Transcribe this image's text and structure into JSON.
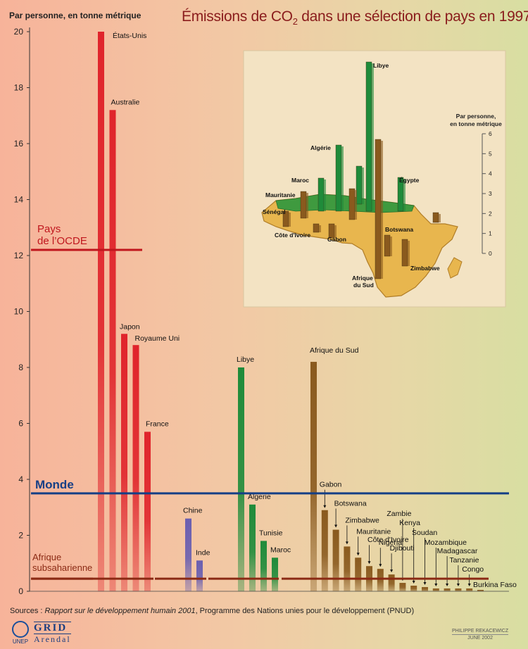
{
  "chart_data": {
    "type": "bar",
    "title_parts": {
      "before": "Émissions de CO",
      "sub": "2",
      "after": " dans une sélection de pays en 1997"
    },
    "ylabel": "Par personne, en tonne métrique",
    "ylim": [
      0,
      20
    ],
    "yticks": [
      "0",
      "2",
      "4",
      "6",
      "8",
      "10",
      "12",
      "14",
      "16",
      "18",
      "20"
    ],
    "groups": [
      {
        "color": "#e0242b",
        "bars": [
          {
            "label": "États-Unis",
            "value": 20.0
          },
          {
            "label": "Australie",
            "value": 17.2
          },
          {
            "label": "Japon",
            "value": 9.2
          },
          {
            "label": "Royaume Uni",
            "value": 8.8
          },
          {
            "label": "France",
            "value": 5.7
          }
        ]
      },
      {
        "color": "#6a5fb0",
        "bars": [
          {
            "label": "Chine",
            "value": 2.6
          },
          {
            "label": "Inde",
            "value": 1.1
          }
        ]
      },
      {
        "color": "#1f8b3a",
        "bars": [
          {
            "label": "Libye",
            "value": 8.0
          },
          {
            "label": "Algerie",
            "value": 3.1
          },
          {
            "label": "Tunisie",
            "value": 1.8
          },
          {
            "label": "Maroc",
            "value": 1.2
          }
        ]
      },
      {
        "color": "#8a5a1e",
        "bars": [
          {
            "label": "Afrique du Sud",
            "value": 8.2
          },
          {
            "label": "Gabon",
            "value": 2.9
          },
          {
            "label": "Botswana",
            "value": 2.2
          },
          {
            "label": "Zimbabwe",
            "value": 1.6
          },
          {
            "label": "Mauritanie",
            "value": 1.2
          },
          {
            "label": "Côte d'Ivoire",
            "value": 0.9
          },
          {
            "label": "Nigeria",
            "value": 0.8
          },
          {
            "label": "Djibouti",
            "value": 0.6
          },
          {
            "label": "Zambie",
            "value": 0.3
          },
          {
            "label": "Kenya",
            "value": 0.2
          },
          {
            "label": "Soudan",
            "value": 0.15
          },
          {
            "label": "Mozambique",
            "value": 0.1
          },
          {
            "label": "Madagascar",
            "value": 0.1
          },
          {
            "label": "Tanzanie",
            "value": 0.1
          },
          {
            "label": "Congo",
            "value": 0.1
          },
          {
            "label": "Burkina Faso",
            "value": 0.05
          }
        ]
      }
    ],
    "reference_lines": [
      {
        "label": "Pays de l’OCDE",
        "value": 12.2,
        "color": "#c0161d"
      },
      {
        "label": "Monde",
        "value": 3.5,
        "color": "#153f86"
      },
      {
        "label": "Afrique subsaharienne",
        "value": 0.45,
        "color": "#8b2a14"
      }
    ],
    "inset": {
      "ylabel": "Par personne, en tonne métrique",
      "yticks": [
        "0",
        "1",
        "2",
        "3",
        "4",
        "5",
        "6"
      ],
      "labels": [
        "Libye",
        "Algérie",
        "Maroc",
        "Égypte",
        "Mauritanie",
        "Sénégal",
        "Côte d'Ivoire",
        "Gabon",
        "Botswana",
        "Zimbabwe",
        "Afrique du Sud"
      ]
    }
  },
  "sources": {
    "prefix": "Sources : ",
    "report": "Rapport sur le développement humain 2001",
    "suffix": ", Programme des Nations unies pour le développement (PNUD)"
  },
  "logos": {
    "unep": "UNEP",
    "grid_top": "GRID",
    "grid_bottom": "Arendal"
  },
  "credit": {
    "author": "PHILIPPE REKACEWICZ",
    "date": "JUNE 2002"
  }
}
